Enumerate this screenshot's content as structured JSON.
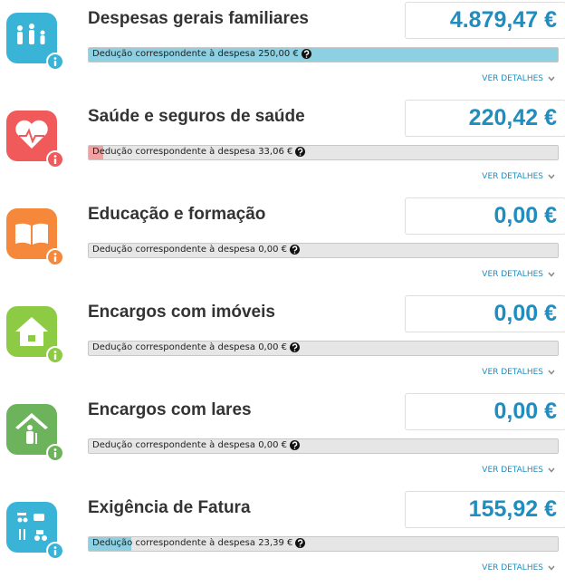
{
  "items": [
    {
      "title": "Despesas gerais familiares",
      "amount": "4.879,47 €",
      "deduction": "Dedução correspondente à despesa 250,00 €",
      "fill": 100,
      "link": "VER DETALHES",
      "color": "#3ab4d6",
      "fill_color": "#8dd0e2"
    },
    {
      "title": "Saúde e seguros de saúde",
      "amount": "220,42 €",
      "deduction": "Dedução correspondente à despesa 33,06 €",
      "fill": 3,
      "link": "VER DETALHES",
      "color": "#f05a5a",
      "fill_color": "#f2a0a0"
    },
    {
      "title": "Educação e formação",
      "amount": "0,00 €",
      "deduction": "Dedução correspondente à despesa 0,00 €",
      "fill": 0,
      "link": "VER DETALHES",
      "color": "#f5883a",
      "fill_color": "#f5b37f"
    },
    {
      "title": "Encargos com imóveis",
      "amount": "0,00 €",
      "deduction": "Dedução correspondente à despesa 0,00 €",
      "fill": 0,
      "link": "VER DETALHES",
      "color": "#8dcb45",
      "fill_color": "#b9df8c"
    },
    {
      "title": "Encargos com lares",
      "amount": "0,00 €",
      "deduction": "Dedução correspondente à despesa 0,00 €",
      "fill": 0,
      "link": "VER DETALHES",
      "color": "#6cb35b",
      "fill_color": "#a6d29b"
    },
    {
      "title": "Exigência de Fatura",
      "amount": "155,92 €",
      "deduction": "Dedução correspondente à despesa 23,39 €",
      "fill": 9,
      "link": "VER DETALHES",
      "color": "#3ab4d6",
      "fill_color": "#8dd0e2"
    }
  ]
}
